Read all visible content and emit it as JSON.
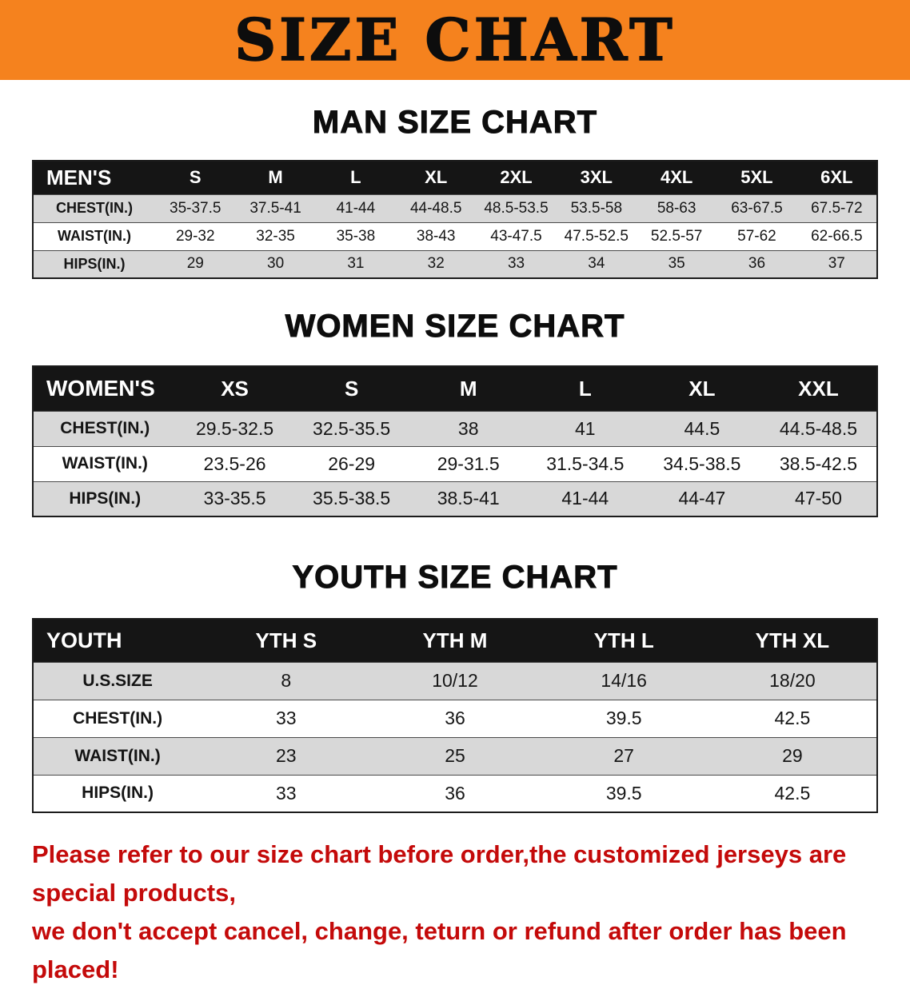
{
  "banner": {
    "title": "SIZE CHART"
  },
  "colors": {
    "banner_bg": "#F5821E",
    "header_bg": "#151515",
    "row_gray": "#D8D8D8",
    "disclaimer_red": "#C40A0A"
  },
  "sections": [
    {
      "heading": "MAN SIZE CHART",
      "table": {
        "header": [
          "MEN'S",
          "S",
          "M",
          "L",
          "XL",
          "2XL",
          "3XL",
          "4XL",
          "5XL",
          "6XL"
        ],
        "rows": [
          {
            "label": "CHEST(IN.)",
            "values": [
              "35-37.5",
              "37.5-41",
              "41-44",
              "44-48.5",
              "48.5-53.5",
              "53.5-58",
              "58-63",
              "63-67.5",
              "67.5-72"
            ]
          },
          {
            "label": "WAIST(IN.)",
            "values": [
              "29-32",
              "32-35",
              "35-38",
              "38-43",
              "43-47.5",
              "47.5-52.5",
              "52.5-57",
              "57-62",
              "62-66.5"
            ]
          },
          {
            "label": "HIPS(IN.)",
            "values": [
              "29",
              "30",
              "31",
              "32",
              "33",
              "34",
              "35",
              "36",
              "37"
            ]
          }
        ]
      }
    },
    {
      "heading": "WOMEN SIZE CHART",
      "table": {
        "header": [
          "WOMEN'S",
          "XS",
          "S",
          "M",
          "L",
          "XL",
          "XXL"
        ],
        "rows": [
          {
            "label": "CHEST(IN.)",
            "values": [
              "29.5-32.5",
              "32.5-35.5",
              "38",
              "41",
              "44.5",
              "44.5-48.5"
            ]
          },
          {
            "label": "WAIST(IN.)",
            "values": [
              "23.5-26",
              "26-29",
              "29-31.5",
              "31.5-34.5",
              "34.5-38.5",
              "38.5-42.5"
            ]
          },
          {
            "label": "HIPS(IN.)",
            "values": [
              "33-35.5",
              "35.5-38.5",
              "38.5-41",
              "41-44",
              "44-47",
              "47-50"
            ]
          }
        ]
      }
    },
    {
      "heading": "YOUTH SIZE CHART",
      "table": {
        "header": [
          "YOUTH",
          "YTH S",
          "YTH M",
          "YTH L",
          "YTH XL"
        ],
        "rows": [
          {
            "label": "U.S.SIZE",
            "values": [
              "8",
              "10/12",
              "14/16",
              "18/20"
            ]
          },
          {
            "label": "CHEST(IN.)",
            "values": [
              "33",
              "36",
              "39.5",
              "42.5"
            ]
          },
          {
            "label": "WAIST(IN.)",
            "values": [
              "23",
              "25",
              "27",
              "29"
            ]
          },
          {
            "label": "HIPS(IN.)",
            "values": [
              "33",
              "36",
              "39.5",
              "42.5"
            ]
          }
        ]
      }
    }
  ],
  "disclaimer": {
    "line1": "Please refer to our size chart before order,the customized jerseys are special products,",
    "line2": "we don't accept cancel, change, teturn or refund after order has been placed!"
  }
}
